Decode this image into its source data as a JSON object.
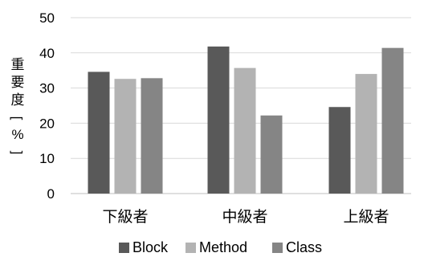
{
  "chart_data": {
    "type": "bar",
    "categories": [
      "下級者",
      "中級者",
      "上級者"
    ],
    "series": [
      {
        "name": "Block",
        "values": [
          34.6,
          41.8,
          24.6
        ],
        "color": "#595959"
      },
      {
        "name": "Method",
        "values": [
          32.6,
          35.7,
          34.0
        ],
        "color": "#b3b3b3"
      },
      {
        "name": "Class",
        "values": [
          32.8,
          22.2,
          41.4
        ],
        "color": "#858585"
      }
    ],
    "ylabel_chars": [
      "重",
      "要",
      "度",
      "[",
      "%",
      "]"
    ],
    "ylim": [
      0,
      50
    ],
    "yticks": [
      "0",
      "10",
      "20",
      "30",
      "40",
      "50"
    ],
    "grid": true,
    "legend_position": "bottom",
    "gridline_color": "#d9d9d9"
  }
}
